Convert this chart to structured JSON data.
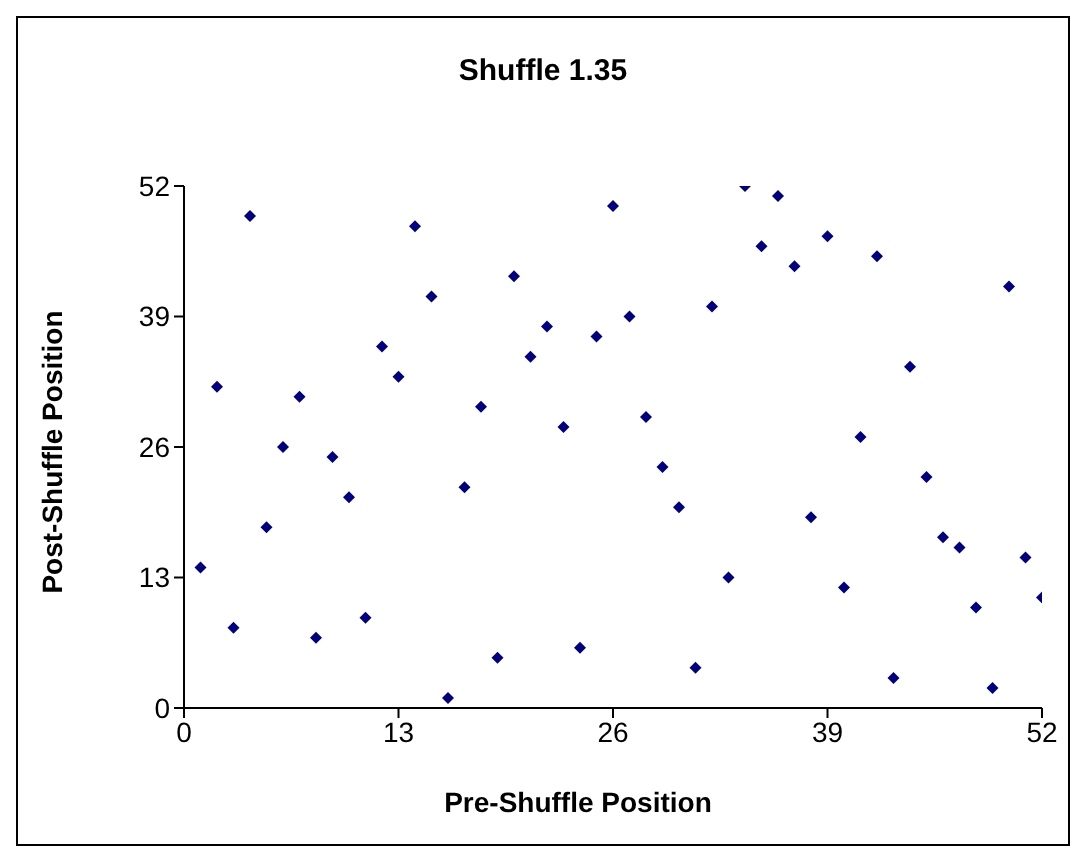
{
  "chart_data": {
    "type": "scatter",
    "title": "Shuffle 1.35",
    "xlabel": "Pre-Shuffle Position",
    "ylabel": "Post-Shuffle Position",
    "x": [
      1,
      2,
      3,
      4,
      5,
      6,
      7,
      8,
      9,
      10,
      11,
      12,
      13,
      14,
      15,
      16,
      17,
      18,
      19,
      20,
      21,
      22,
      23,
      24,
      25,
      26,
      27,
      28,
      29,
      30,
      31,
      32,
      33,
      34,
      35,
      36,
      37,
      38,
      39,
      40,
      41,
      42,
      43,
      44,
      45,
      46,
      47,
      48,
      49,
      50,
      51,
      52
    ],
    "values": [
      14,
      32,
      8,
      49,
      18,
      26,
      31,
      7,
      25,
      21,
      9,
      36,
      33,
      48,
      41,
      1,
      22,
      30,
      5,
      43,
      35,
      38,
      28,
      6,
      37,
      50,
      39,
      29,
      24,
      20,
      4,
      40,
      13,
      52,
      46,
      51,
      44,
      19,
      47,
      12,
      27,
      45,
      3,
      34,
      23,
      17,
      16,
      10,
      2,
      42,
      15,
      11
    ],
    "color": "#000080",
    "marker": "diamond",
    "grid": false,
    "legend": false,
    "xlim": [
      0,
      52
    ],
    "xticks": [
      0,
      13,
      26,
      39,
      52
    ],
    "ylim": [
      0,
      52
    ],
    "yticks": [
      0,
      13,
      26,
      39,
      52
    ]
  }
}
